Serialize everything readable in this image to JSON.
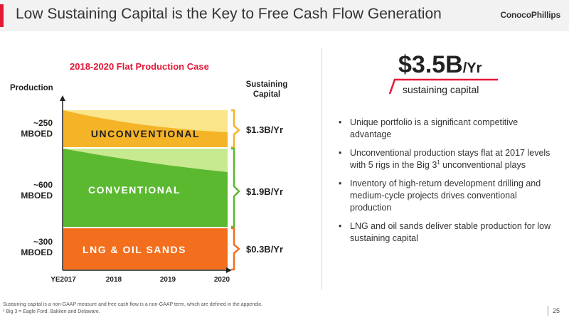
{
  "header": {
    "title": "Low Sustaining Capital is the Key to Free Cash Flow Generation",
    "logo": "ConocoPhillips"
  },
  "chart": {
    "title": "2018-2020 Flat Production Case",
    "production_label": "Production",
    "sustaining_label": "Sustaining Capital",
    "x_ticks": [
      "YE2017",
      "2018",
      "2019",
      "2020"
    ],
    "bands": [
      {
        "name": "UNCONVENTIONAL",
        "production": "~250 MBOED",
        "capital": "$1.3B/Yr",
        "color": "#f5b427",
        "light_color": "#fbe58a"
      },
      {
        "name": "CONVENTIONAL",
        "production": "~600 MBOED",
        "capital": "$1.9B/Yr",
        "color": "#5bb930",
        "light_color": "#c7e98f"
      },
      {
        "name": "LNG & OIL SANDS",
        "production": "~300 MBOED",
        "capital": "$0.3B/Yr",
        "color": "#f36f1e",
        "light_color": "#f36f1e"
      }
    ]
  },
  "summary": {
    "value": "$3.5B",
    "unit": "/Yr",
    "label": "sustaining capital",
    "bullets": [
      "Unique portfolio is a significant competitive advantage",
      "Unconventional production stays flat at 2017 levels with 5 rigs in the Big 3",
      "Inventory of high-return development drilling and medium-cycle projects drives conventional production",
      "LNG and oil sands deliver stable production for low sustaining capital"
    ],
    "bullet2_sup": "1",
    "bullet2_tail": "unconventional plays"
  },
  "footnotes": {
    "line1": "Sustaining capital is a non-GAAP measure and free cash flow is a non-GAAP term, which are defined in the appendix.",
    "line2": "¹ Big 3 = Eagle Ford, Bakken and Delaware."
  },
  "page_number": "25"
}
